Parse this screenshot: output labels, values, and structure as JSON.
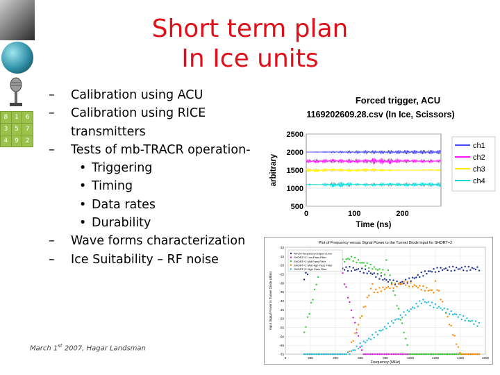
{
  "slide": {
    "title_line1": "Short term plan",
    "title_line2": "In Ice units",
    "bullets": [
      {
        "level": 1,
        "text": "Calibration using ACU"
      },
      {
        "level": 1,
        "text": "Calibration using RICE transmitters"
      },
      {
        "level": 1,
        "text": "Tests of mb-TRACR operation-"
      },
      {
        "level": 2,
        "text": "Triggering"
      },
      {
        "level": 2,
        "text": "Timing"
      },
      {
        "level": 2,
        "text": "Data rates"
      },
      {
        "level": 2,
        "text": "Durability"
      },
      {
        "level": 1,
        "text": "Wave forms characterization"
      },
      {
        "level": 1,
        "text": "Ice Suitability – RF noise"
      }
    ],
    "footer": "March 1st 2007, Hagar Landsman",
    "colors": {
      "title": "#e0101a",
      "accent_green": "#9cc24b"
    },
    "grid_numbers": [
      "8",
      "1",
      "6",
      "3",
      "5",
      "7",
      "4",
      "9",
      "2"
    ],
    "icons": [
      "portrait-photo",
      "globe-icon",
      "microphone-icon",
      "magic-square-grid"
    ]
  },
  "chart_data": [
    {
      "type": "line",
      "title": "Forced trigger, ACU",
      "subtitle": "1169202609.28.csv (In Ice, Scissors)",
      "xlabel": "Time (ns)",
      "ylabel": "arbitrary",
      "xlim": [
        0,
        280
      ],
      "ylim": [
        500,
        2500
      ],
      "x_ticks": [
        "0",
        "100",
        "200"
      ],
      "y_ticks": [
        "500",
        "1000",
        "1500",
        "2000",
        "2500"
      ],
      "legend_position": "right",
      "series": [
        {
          "name": "ch1",
          "color": "#4040ff",
          "baseline": 2000
        },
        {
          "name": "ch2",
          "color": "#ff10ff",
          "baseline": 1750
        },
        {
          "name": "ch3",
          "color": "#ffee00",
          "baseline": 1500
        },
        {
          "name": "ch4",
          "color": "#00d8d8",
          "baseline": 1100
        }
      ]
    },
    {
      "type": "scatter",
      "title": "Plot of Frequency versus Signal Power to the Tunnel Diode input for SHORT+2",
      "xlabel": "Frequency (MHz)",
      "ylabel": "Input Signal Power to Tunnel Diode (dBm)",
      "xlim": [
        0,
        1600
      ],
      "ylim": [
        -70,
        -10
      ],
      "x_ticks": [
        "0",
        "200",
        "400",
        "600",
        "800",
        "1000",
        "1200",
        "1400",
        "1600"
      ],
      "y_ticks": [
        "-10",
        "-15",
        "-20",
        "-25",
        "-30",
        "-35",
        "-40",
        "-45",
        "-50",
        "-55",
        "-60",
        "-65",
        "-70"
      ],
      "legend_position": "top-left",
      "series": [
        {
          "name": "RFCM frequency Output Curve",
          "color": "#1a2f8c"
        },
        {
          "name": "SHORT+2 Low Pass Filter",
          "color": "#cc22cc"
        },
        {
          "name": "SHORT+2 Mid Pass Filter",
          "color": "#33cc33"
        },
        {
          "name": "SHORT+2 Mid High Pass Filter",
          "color": "#ff8800"
        },
        {
          "name": "SHORT+2 High Pass Filter",
          "color": "#22bbdd"
        }
      ]
    }
  ]
}
